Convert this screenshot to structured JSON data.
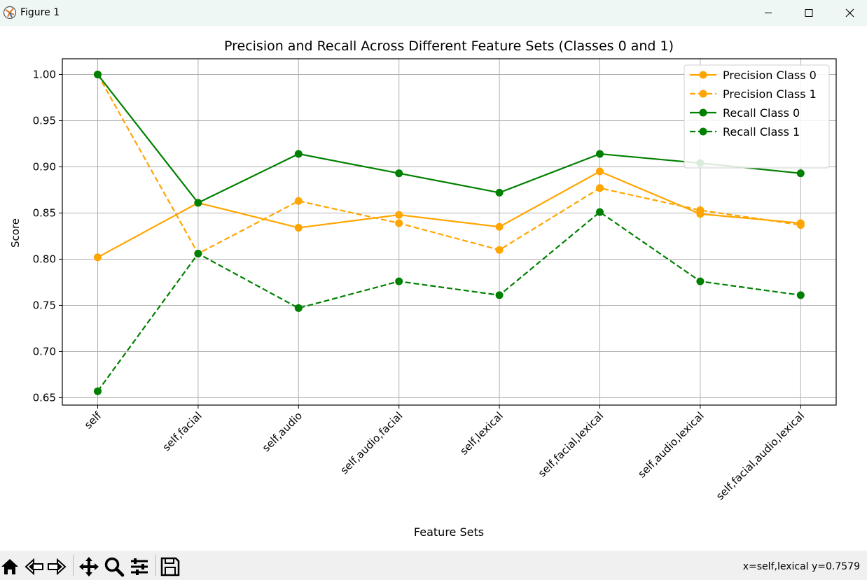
{
  "window": {
    "title": "Figure 1",
    "controls": [
      "minimize-icon",
      "maximize-icon",
      "close-icon"
    ]
  },
  "toolbar": {
    "buttons": [
      "home-icon",
      "back-icon",
      "forward-icon",
      "pan-icon",
      "zoom-icon",
      "configure-subplots-icon",
      "save-icon"
    ],
    "coords": "x=self,lexical y=0.7579"
  },
  "chart_data": {
    "type": "line",
    "title": "Precision and Recall Across Different Feature Sets (Classes 0 and 1)",
    "xlabel": "Feature Sets",
    "ylabel": "Score",
    "categories": [
      "self",
      "self,facial",
      "self,audio",
      "self,audio,facial",
      "self,lexical",
      "self,facial,lexical",
      "self,audio,lexical",
      "self,facial,audio,lexical"
    ],
    "yticks": [
      "0.65",
      "0.70",
      "0.75",
      "0.80",
      "0.85",
      "0.90",
      "0.95",
      "1.00"
    ],
    "ylim": [
      0.642,
      1.017
    ],
    "grid": true,
    "legend_position": "upper right",
    "series": [
      {
        "name": "Precision Class 0",
        "color": "#ffa500",
        "style": "solid",
        "values": [
          0.802,
          0.861,
          0.834,
          0.848,
          0.835,
          0.895,
          0.849,
          0.839
        ]
      },
      {
        "name": "Precision Class 1",
        "color": "#ffa500",
        "style": "dashed",
        "values": [
          1.0,
          0.806,
          0.863,
          0.839,
          0.81,
          0.877,
          0.853,
          0.837
        ]
      },
      {
        "name": "Recall Class 0",
        "color": "#008000",
        "style": "solid",
        "values": [
          1.0,
          0.861,
          0.914,
          0.893,
          0.872,
          0.914,
          0.904,
          0.893
        ]
      },
      {
        "name": "Recall Class 1",
        "color": "#008000",
        "style": "dashed",
        "values": [
          0.657,
          0.806,
          0.747,
          0.776,
          0.761,
          0.851,
          0.776,
          0.761
        ]
      }
    ]
  }
}
